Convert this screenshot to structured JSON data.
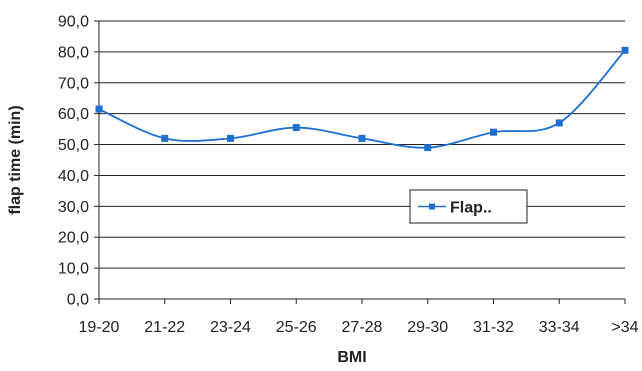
{
  "chart_data": {
    "type": "line",
    "categories": [
      "19-20",
      "21-22",
      "23-24",
      "25-26",
      "27-28",
      "29-30",
      "31-32",
      "33-34",
      ">34"
    ],
    "series": [
      {
        "name": "Flap..",
        "values": [
          61.5,
          52.0,
          52.0,
          55.5,
          52.0,
          49.0,
          54.0,
          57.0,
          80.5
        ],
        "color": "#1f6fd1"
      }
    ],
    "title": "",
    "xlabel": "BMI",
    "ylabel": "flap time (min)",
    "ylim": [
      0,
      90
    ],
    "yticks": [
      "0,0",
      "10,0",
      "20,0",
      "30,0",
      "40,0",
      "50,0",
      "60,0",
      "70,0",
      "80,0",
      "90,0"
    ],
    "grid": true,
    "legend_position": "center-right",
    "smooth": true
  }
}
